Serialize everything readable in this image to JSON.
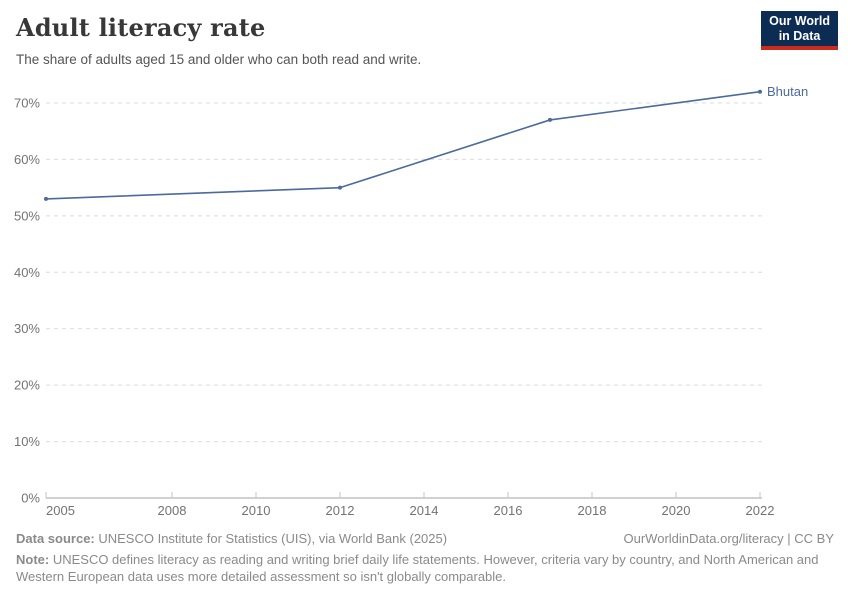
{
  "header": {
    "title": "Adult literacy rate",
    "subtitle": "The share of adults aged 15 and older who can both read and write.",
    "logo": {
      "line1": "Our World",
      "line2": "in Data"
    }
  },
  "chart_data": {
    "type": "line",
    "title": "Adult literacy rate",
    "xlabel": "",
    "ylabel": "",
    "unit": "%",
    "x": [
      2005,
      2012,
      2017,
      2022
    ],
    "series": [
      {
        "name": "Bhutan",
        "color": "#4c6a9c",
        "values": [
          53,
          55,
          67,
          72
        ]
      }
    ],
    "xlim": [
      2005,
      2022
    ],
    "ylim": [
      0,
      72
    ],
    "yticks": [
      {
        "value": 0,
        "label": "0%"
      },
      {
        "value": 10,
        "label": "10%"
      },
      {
        "value": 20,
        "label": "20%"
      },
      {
        "value": 30,
        "label": "30%"
      },
      {
        "value": 40,
        "label": "40%"
      },
      {
        "value": 50,
        "label": "50%"
      },
      {
        "value": 60,
        "label": "60%"
      },
      {
        "value": 70,
        "label": "70%"
      }
    ],
    "xticks": [
      {
        "value": 2005,
        "label": "2005"
      },
      {
        "value": 2008,
        "label": "2008"
      },
      {
        "value": 2010,
        "label": "2010"
      },
      {
        "value": 2012,
        "label": "2012"
      },
      {
        "value": 2014,
        "label": "2014"
      },
      {
        "value": 2016,
        "label": "2016"
      },
      {
        "value": 2018,
        "label": "2018"
      },
      {
        "value": 2020,
        "label": "2020"
      },
      {
        "value": 2022,
        "label": "2022"
      }
    ],
    "grid": "horizontal-dashed",
    "legend_position": "line-end-label",
    "entity_label": "Bhutan",
    "colors": {
      "grid": "#dcdcdc",
      "axis": "#a3a3a3",
      "tick": "#c4c4c4",
      "tick_text": "#737373"
    }
  },
  "footer": {
    "datasource_label": "Data source:",
    "datasource_text": " UNESCO Institute for Statistics (UIS), via World Bank (2025)",
    "link": "OurWorldinData.org/literacy | CC BY",
    "note_label": "Note:",
    "note_text": " UNESCO defines literacy as reading and writing brief daily life statements. However, criteria vary by country, and North American and Western European data uses more detailed assessment so isn't globally comparable."
  }
}
